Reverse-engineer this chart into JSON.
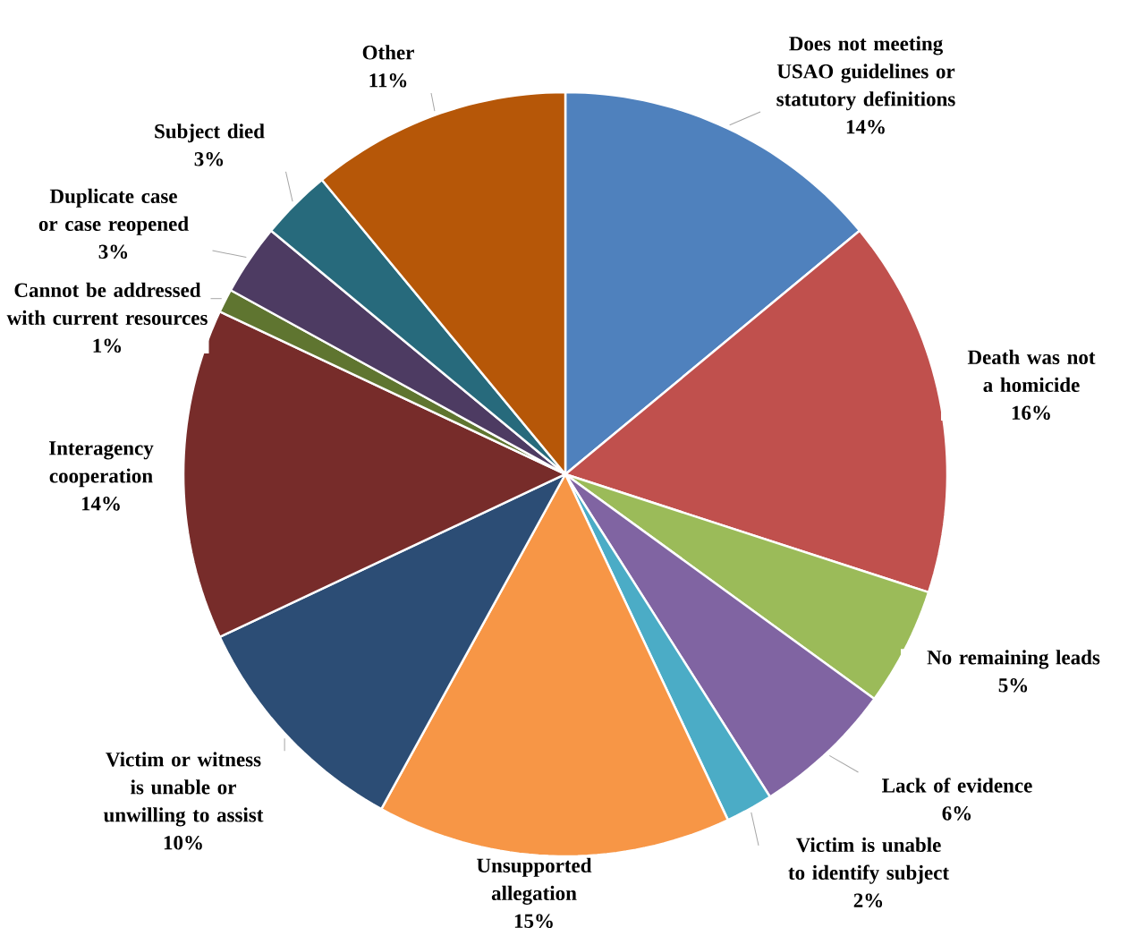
{
  "chart_data": {
    "type": "pie",
    "categories": [
      "Does not meeting USAO guidelines or statutory definitions",
      "Death was not a homicide",
      "No remaining leads",
      "Lack of evidence",
      "Victim is unable to identify subject",
      "Unsupported allegation",
      "Victim or witness is unable or unwilling to assist",
      "Interagency cooperation",
      "Cannot be addressed with current resources",
      "Duplicate case or case reopened",
      "Subject died",
      "Other"
    ],
    "values": [
      14,
      16,
      5,
      6,
      2,
      15,
      10,
      14,
      1,
      3,
      3,
      11
    ],
    "value_labels": [
      "14%",
      "16%",
      "5%",
      "6%",
      "2%",
      "15%",
      "10%",
      "14%",
      "1%",
      "3%",
      "3%",
      "11%"
    ],
    "colors": [
      "#4f81bd",
      "#c0504d",
      "#9bbb59",
      "#8064a2",
      "#4bacc6",
      "#f79646",
      "#2c4d75",
      "#772c2a",
      "#5f7530",
      "#4d3b62",
      "#276a7c",
      "#b65708"
    ]
  }
}
